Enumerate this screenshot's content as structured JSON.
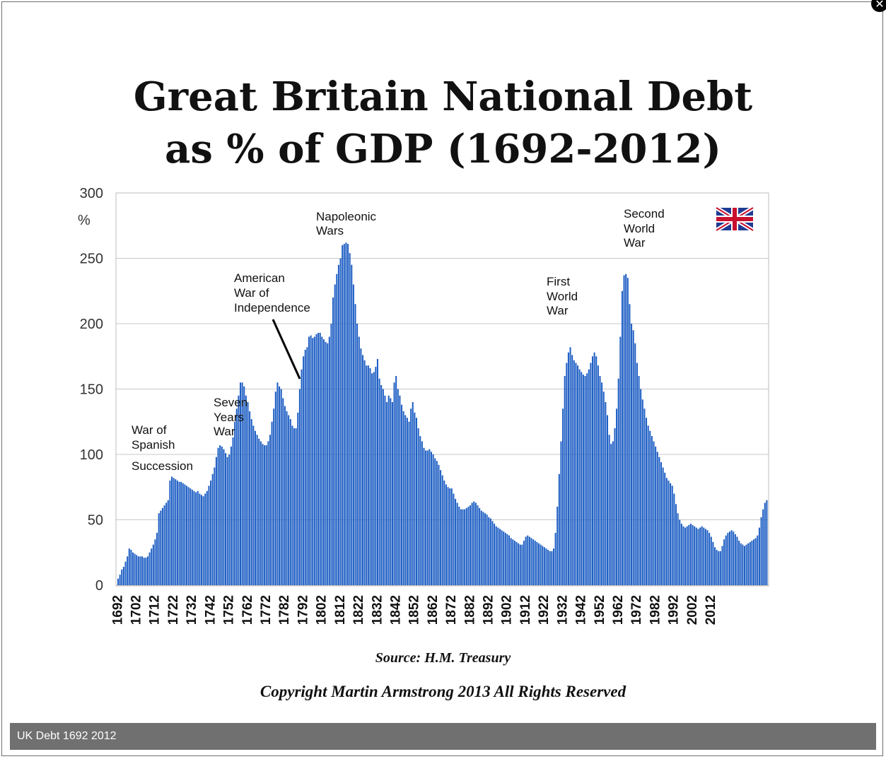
{
  "caption": "UK Debt 1692 2012",
  "close_icon": "close-icon",
  "chart_data": {
    "type": "bar",
    "title_lines": [
      "Great Britain National Debt",
      "as % of GDP (1692-2012)"
    ],
    "y_unit": "%",
    "ylim": [
      0,
      300
    ],
    "y_ticks": [
      0,
      50,
      100,
      150,
      200,
      250,
      300
    ],
    "x_tick_labels": [
      "1692",
      "1702",
      "1712",
      "1722",
      "1732",
      "1742",
      "1752",
      "1762",
      "1772",
      "1782",
      "1792",
      "1802",
      "1812",
      "1822",
      "1832",
      "1842",
      "1852",
      "1862",
      "1872",
      "1882",
      "1892",
      "1902",
      "1912",
      "1922",
      "1932",
      "1942",
      "1952",
      "1962",
      "1972",
      "1982",
      "1992",
      "2002",
      "2012"
    ],
    "grid": true,
    "bar_color": "#1f5fc4",
    "series": [
      {
        "start_year": 1692,
        "values": [
          5,
          8,
          12,
          14,
          18,
          22,
          28,
          27,
          25,
          24,
          23,
          22,
          22,
          22,
          21,
          21,
          22,
          25,
          28,
          31,
          35,
          40,
          55,
          57,
          59,
          61,
          63,
          65,
          80,
          83,
          82,
          81,
          80,
          79,
          79,
          78,
          77,
          76,
          75,
          74,
          73,
          72,
          71,
          72,
          70,
          69,
          68,
          70,
          72,
          76,
          80,
          85,
          90,
          98,
          105,
          107,
          106,
          104,
          101,
          98,
          100,
          106,
          113,
          125,
          135,
          145,
          155,
          155,
          152,
          145,
          140,
          133,
          127,
          122,
          118,
          115,
          112,
          110,
          108,
          107,
          107,
          110,
          115,
          125,
          135,
          148,
          155,
          152,
          150,
          143,
          137,
          133,
          130,
          127,
          122,
          120,
          120,
          132,
          150,
          165,
          175,
          180,
          182,
          190,
          191,
          189,
          190,
          192,
          193,
          193,
          190,
          188,
          186,
          185,
          190,
          200,
          220,
          230,
          238,
          245,
          250,
          260,
          261,
          262,
          261,
          254,
          245,
          230,
          215,
          200,
          190,
          181,
          176,
          172,
          168,
          168,
          166,
          162,
          163,
          167,
          173,
          158,
          153,
          150,
          145,
          140,
          145,
          143,
          140,
          155,
          160,
          150,
          145,
          138,
          133,
          130,
          128,
          125,
          135,
          140,
          132,
          128,
          120,
          114,
          110,
          105,
          103,
          103,
          104,
          102,
          100,
          97,
          95,
          92,
          88,
          84,
          80,
          77,
          75,
          74,
          74,
          70,
          66,
          63,
          60,
          58,
          58,
          58,
          59,
          60,
          61,
          63,
          64,
          63,
          61,
          59,
          57,
          56,
          55,
          54,
          52,
          51,
          49,
          47,
          45,
          44,
          43,
          42,
          41,
          40,
          39,
          38,
          36,
          35,
          34,
          33,
          32,
          31,
          31,
          34,
          37,
          38,
          37,
          36,
          35,
          34,
          33,
          32,
          31,
          30,
          29,
          28,
          27,
          26,
          26,
          28,
          40,
          60,
          85,
          110,
          135,
          160,
          170,
          178,
          182,
          176,
          172,
          170,
          168,
          165,
          163,
          161,
          160,
          162,
          165,
          170,
          175,
          178,
          175,
          168,
          160,
          155,
          148,
          140,
          130,
          115,
          108,
          110,
          120,
          135,
          158,
          190,
          225,
          237,
          238,
          235,
          215,
          200,
          195,
          185,
          170,
          160,
          150,
          142,
          135,
          128,
          122,
          118,
          114,
          110,
          106,
          102,
          98,
          94,
          90,
          86,
          82,
          80,
          78,
          76,
          70,
          62,
          55,
          50,
          47,
          45,
          44,
          45,
          46,
          47,
          46,
          45,
          44,
          43,
          44,
          45,
          44,
          43,
          42,
          40,
          37,
          33,
          29,
          27,
          26,
          26,
          30,
          35,
          38,
          40,
          41,
          42,
          41,
          39,
          37,
          34,
          32,
          31,
          30,
          31,
          32,
          33,
          34,
          35,
          36,
          38,
          44,
          52,
          58,
          63,
          65
        ]
      }
    ],
    "annotations": [
      {
        "lines": [
          "War of",
          "Spanish",
          "Succession"
        ]
      },
      {
        "lines": [
          "Seven",
          "Years",
          "War"
        ]
      },
      {
        "lines": [
          "American",
          "War of",
          "Independence"
        ]
      },
      {
        "lines": [
          "Napoleonic",
          "Wars"
        ]
      },
      {
        "lines": [
          "First",
          "World",
          "War"
        ]
      },
      {
        "lines": [
          "Second",
          "World",
          "War"
        ]
      }
    ],
    "flag_icon": "union-jack-icon",
    "source": "Source: H.M. Treasury",
    "copyright": "Copyright Martin Armstrong 2013 All Rights Reserved"
  }
}
